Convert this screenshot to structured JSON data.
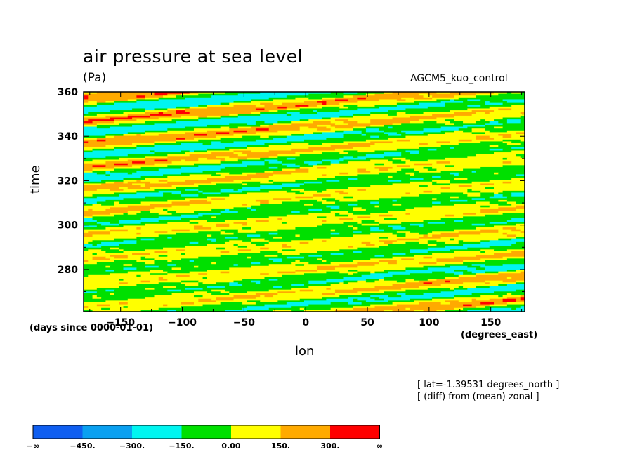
{
  "chart_data": {
    "type": "heatmap",
    "title": "air pressure at sea level",
    "units": "(Pa)",
    "dataset": "AGCM5_kuo_control",
    "xlabel": "lon",
    "ylabel": "time",
    "x_units": "(degrees_east)",
    "y_units": "(days since 0000-01-01)",
    "x_ticks": [
      -150,
      -100,
      -50,
      0,
      50,
      100,
      150
    ],
    "y_ticks": [
      280,
      300,
      320,
      340,
      360
    ],
    "xlim": [
      -180,
      177.5
    ],
    "ylim": [
      261,
      360
    ],
    "notes": [
      "[ lat=-1.39531 degrees_north ]",
      "[ (diff) from (mean) zonal ]"
    ],
    "colorbar": {
      "labels": [
        "-∞",
        "-450.",
        "-300.",
        "-150.",
        "0.00",
        "150.",
        "300.",
        "∞"
      ],
      "bins": [
        {
          "range": [
            "-∞",
            "-450."
          ],
          "color": "#0f5ef0"
        },
        {
          "range": [
            "-450.",
            "-300."
          ],
          "color": "#0aa0f0"
        },
        {
          "range": [
            "-300.",
            "-150."
          ],
          "color": "#00f5f0"
        },
        {
          "range": [
            "-150.",
            "0.00"
          ],
          "color": "#00e000"
        },
        {
          "range": [
            "0.00",
            "150."
          ],
          "color": "#ffff00"
        },
        {
          "range": [
            "150.",
            "300."
          ],
          "color": "#ffaa00"
        },
        {
          "range": [
            "300.",
            "∞"
          ],
          "color": "#ff0000"
        }
      ]
    },
    "grid": false
  }
}
